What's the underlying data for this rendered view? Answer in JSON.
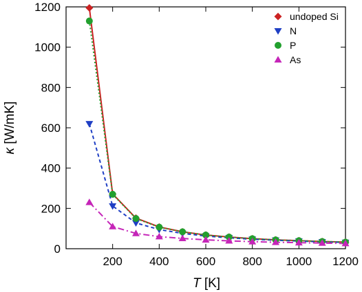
{
  "chart_data": {
    "type": "line",
    "xlabel": "T [K]",
    "xlabel_var": "T",
    "xlabel_unit": " [K]",
    "ylabel": "κ [W/mK]",
    "ylabel_var": "κ",
    "ylabel_unit": " [W/mK]",
    "xlim": [
      0,
      1200
    ],
    "ylim": [
      0,
      1200
    ],
    "xticks": [
      200,
      400,
      600,
      800,
      1000,
      1200
    ],
    "yticks": [
      0,
      200,
      400,
      600,
      800,
      1000,
      1200
    ],
    "grid": false,
    "legend_position": "top-right",
    "series": [
      {
        "name": "undoped Si",
        "color": "#cc2222",
        "marker": "diamond",
        "line": "solid",
        "x": [
          100,
          200,
          300,
          400,
          500,
          600,
          700,
          800,
          900,
          1000,
          1100,
          1200
        ],
        "y": [
          1195,
          272,
          152,
          108,
          84,
          68,
          58,
          50,
          44,
          40,
          36,
          33
        ]
      },
      {
        "name": "N",
        "color": "#1f3fc4",
        "marker": "triangle-down",
        "line": "dashed",
        "x": [
          100,
          200,
          300,
          400,
          500,
          600,
          700,
          800,
          900,
          1000,
          1100,
          1200
        ],
        "y": [
          620,
          212,
          128,
          95,
          76,
          63,
          54,
          47,
          42,
          38,
          34,
          31
        ]
      },
      {
        "name": "P",
        "color": "#22a02e",
        "marker": "circle",
        "line": "dotted",
        "x": [
          100,
          200,
          300,
          400,
          500,
          600,
          700,
          800,
          900,
          1000,
          1100,
          1200
        ],
        "y": [
          1130,
          270,
          150,
          107,
          84,
          68,
          58,
          50,
          44,
          40,
          36,
          33
        ]
      },
      {
        "name": "As",
        "color": "#c525b8",
        "marker": "triangle-up",
        "line": "dashdot",
        "x": [
          100,
          200,
          300,
          400,
          500,
          600,
          700,
          800,
          900,
          1000,
          1100,
          1200
        ],
        "y": [
          230,
          110,
          76,
          60,
          51,
          44,
          39,
          35,
          32,
          30,
          28,
          26
        ]
      }
    ]
  }
}
